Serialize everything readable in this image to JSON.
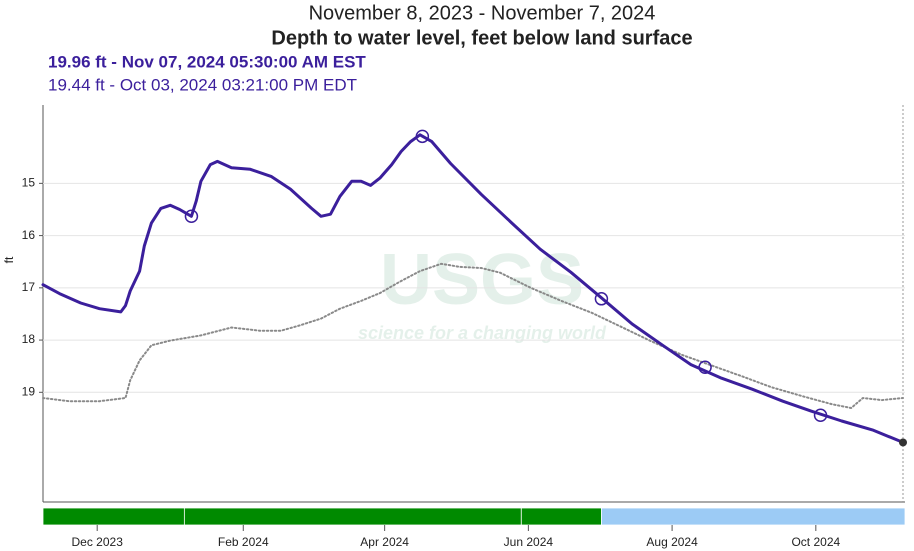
{
  "chart_data": {
    "type": "line",
    "date_range": "November 8, 2023 - November 7, 2024",
    "title": "Depth to water level, feet below land surface",
    "latest_reading": "19.96 ft - Nov 07, 2024 05:30:00 AM EST",
    "selected_reading": "19.44 ft - Oct 03, 2024 03:21:00 PM EDT",
    "y_label": "ft",
    "watermark": "USGS",
    "watermark_tagline": "science for a changing world",
    "ylim": [
      13.5,
      21.1
    ],
    "y_inverted": true,
    "yticks": [
      15,
      16,
      17,
      18,
      19
    ],
    "grid": true,
    "xlim": [
      "2023-11-08",
      "2024-11-07"
    ],
    "xticks": [
      {
        "value": "2023-12-01",
        "label": "Dec 2023"
      },
      {
        "value": "2024-02-01",
        "label": "Feb 2024"
      },
      {
        "value": "2024-04-01",
        "label": "Apr 2024"
      },
      {
        "value": "2024-06-01",
        "label": "Jun 2024"
      },
      {
        "value": "2024-08-01",
        "label": "Aug 2024"
      },
      {
        "value": "2024-10-01",
        "label": "Oct 2024"
      }
    ],
    "series": [
      {
        "color": "#3b1f9c",
        "style": "solid",
        "x": [
          "2023-11-08",
          "2023-11-15",
          "2023-11-24",
          "2023-12-02",
          "2023-12-11",
          "2023-12-13",
          "2023-12-15",
          "2023-12-19",
          "2023-12-21",
          "2023-12-24",
          "2023-12-28",
          "2024-01-01",
          "2024-01-05",
          "2024-01-10",
          "2024-01-12",
          "2024-01-14",
          "2024-01-18",
          "2024-01-21",
          "2024-01-27",
          "2024-02-04",
          "2024-02-13",
          "2024-02-21",
          "2024-03-01",
          "2024-03-05",
          "2024-03-09",
          "2024-03-13",
          "2024-03-18",
          "2024-03-22",
          "2024-03-26",
          "2024-03-30",
          "2024-04-04",
          "2024-04-08",
          "2024-04-12",
          "2024-04-16",
          "2024-04-21",
          "2024-04-29",
          "2024-05-12",
          "2024-05-25",
          "2024-06-06",
          "2024-06-19",
          "2024-07-02",
          "2024-07-15",
          "2024-07-28",
          "2024-08-09",
          "2024-08-22",
          "2024-09-04",
          "2024-09-17",
          "2024-09-29",
          "2024-10-12",
          "2024-10-25",
          "2024-11-07"
        ],
        "values": [
          16.94,
          17.11,
          17.29,
          17.4,
          17.46,
          17.34,
          17.06,
          16.68,
          16.2,
          15.76,
          15.48,
          15.42,
          15.5,
          15.63,
          15.34,
          14.96,
          14.64,
          14.58,
          14.7,
          14.73,
          14.87,
          15.11,
          15.48,
          15.63,
          15.59,
          15.25,
          14.96,
          14.96,
          15.04,
          14.9,
          14.64,
          14.39,
          14.2,
          14.07,
          14.2,
          14.62,
          15.21,
          15.76,
          16.26,
          16.7,
          17.19,
          17.69,
          18.1,
          18.47,
          18.73,
          18.94,
          19.17,
          19.36,
          19.55,
          19.72,
          19.96
        ]
      },
      {
        "color": "#8a8a8a",
        "style": "dotted",
        "x": [
          "2023-11-08",
          "2023-11-19",
          "2023-12-02",
          "2023-12-13",
          "2023-12-15",
          "2023-12-19",
          "2023-12-24",
          "2024-01-01",
          "2024-01-14",
          "2024-01-27",
          "2024-02-08",
          "2024-02-17",
          "2024-02-25",
          "2024-03-05",
          "2024-03-13",
          "2024-03-22",
          "2024-03-30",
          "2024-04-08",
          "2024-04-16",
          "2024-04-25",
          "2024-05-03",
          "2024-05-12",
          "2024-05-20",
          "2024-06-02",
          "2024-06-15",
          "2024-06-28",
          "2024-07-11",
          "2024-07-23",
          "2024-08-05",
          "2024-08-18",
          "2024-08-31",
          "2024-09-12",
          "2024-09-25",
          "2024-10-08",
          "2024-10-16",
          "2024-10-21",
          "2024-10-29",
          "2024-11-07"
        ],
        "values": [
          19.11,
          19.17,
          19.17,
          19.11,
          18.77,
          18.39,
          18.1,
          18.01,
          17.91,
          17.76,
          17.82,
          17.82,
          17.72,
          17.59,
          17.4,
          17.25,
          17.1,
          16.87,
          16.68,
          16.54,
          16.6,
          16.62,
          16.71,
          17.0,
          17.25,
          17.48,
          17.76,
          18.02,
          18.28,
          18.49,
          18.7,
          18.9,
          19.07,
          19.23,
          19.3,
          19.11,
          19.15,
          19.11
        ]
      }
    ],
    "field_measurements": {
      "color": "#3b1f9c",
      "x": [
        "2024-01-10",
        "2024-04-17",
        "2024-07-02",
        "2024-08-15",
        "2024-10-03"
      ],
      "values": [
        15.63,
        14.1,
        17.21,
        18.52,
        19.44
      ]
    },
    "latest_point": {
      "color": "#333333",
      "x": "2024-11-07",
      "value": 19.96
    },
    "approval_periods": [
      {
        "start": "2023-11-08",
        "end": "2024-01-07",
        "color": "#008a00"
      },
      {
        "start": "2024-01-07",
        "end": "2024-05-29",
        "color": "#008a00"
      },
      {
        "start": "2024-05-29",
        "end": "2024-07-02",
        "color": "#008a00"
      },
      {
        "start": "2024-07-02",
        "end": "2024-11-07",
        "color": "#9ccbf5"
      }
    ]
  }
}
